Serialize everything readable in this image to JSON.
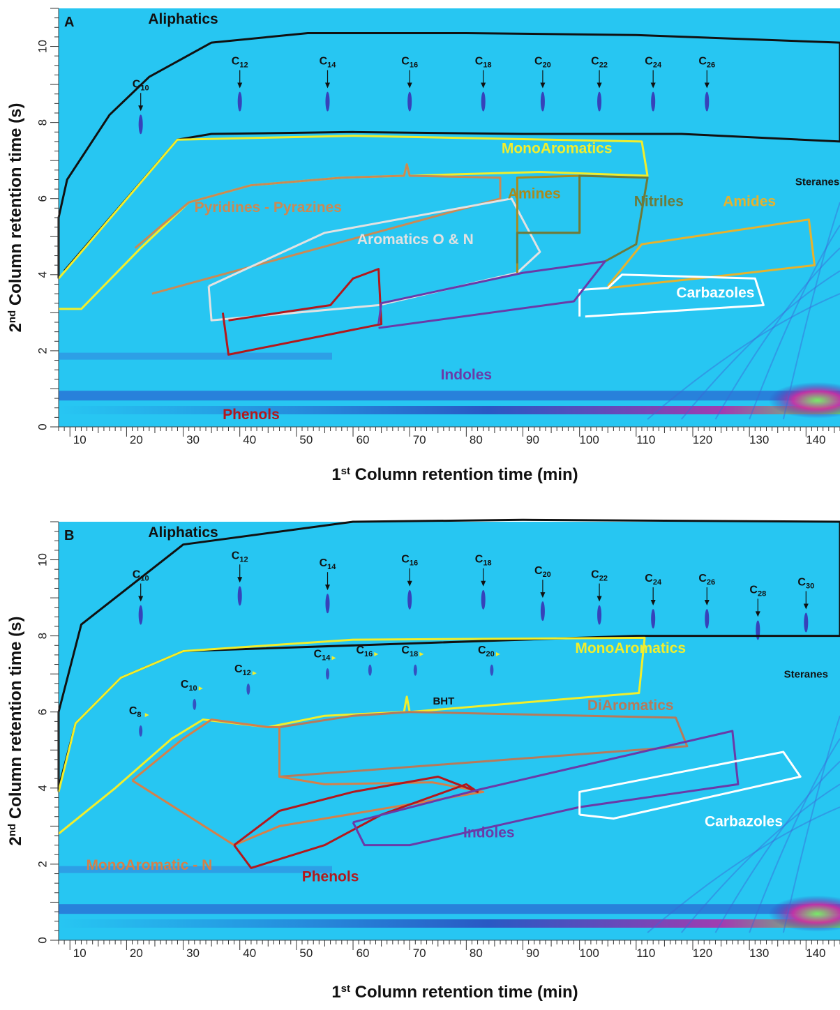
{
  "figure": {
    "colors": {
      "background": "#27c6f2",
      "aliphatics": "#111111",
      "monoaromatics": "#f2ee2b",
      "pyridines": "#c98a55",
      "aromatics_on": "#e2e2e2",
      "amines": "#a88a1e",
      "nitriles": "#6d7a3a",
      "amides": "#e7b22c",
      "carbazoles": "#ffffff",
      "phenols": "#b3181c",
      "indoles": "#6a3aa8",
      "diaromatics": "#b77a5a",
      "monoaromatic_n": "#d4804a"
    }
  },
  "chart_data": [
    {
      "type": "heatmap",
      "panel": "A",
      "xlabel": "1st Column retention time (min)",
      "ylabel": "2nd Column retention time (s)",
      "xlim": [
        8,
        146
      ],
      "ylim": [
        0,
        11
      ],
      "x_ticks": [
        10,
        20,
        30,
        40,
        50,
        60,
        70,
        80,
        90,
        100,
        110,
        120,
        130,
        140
      ],
      "y_ticks": [
        0,
        2,
        4,
        6,
        8,
        10
      ],
      "alkane_markers": [
        {
          "label": "C10",
          "x": 22.5,
          "y": 8.3
        },
        {
          "label": "C12",
          "x": 40,
          "y": 8.9
        },
        {
          "label": "C14",
          "x": 55.5,
          "y": 8.9
        },
        {
          "label": "C16",
          "x": 70,
          "y": 8.9
        },
        {
          "label": "C18",
          "x": 83,
          "y": 8.9
        },
        {
          "label": "C20",
          "x": 93.5,
          "y": 8.9
        },
        {
          "label": "C22",
          "x": 103.5,
          "y": 8.9
        },
        {
          "label": "C24",
          "x": 113,
          "y": 8.9
        },
        {
          "label": "C26",
          "x": 122.5,
          "y": 8.9
        }
      ],
      "regions": [
        {
          "name": "Aliphatics",
          "color_key": "aliphatics",
          "label_x": 30,
          "label_y": 10.6,
          "points": [
            [
              8,
              3.9
            ],
            [
              8,
              5.5
            ],
            [
              9.5,
              6.5
            ],
            [
              17,
              8.2
            ],
            [
              24,
              9.2
            ],
            [
              35,
              10.1
            ],
            [
              52,
              10.35
            ],
            [
              80,
              10.35
            ],
            [
              110,
              10.3
            ],
            [
              146,
              10.1
            ],
            [
              146,
              7.5
            ],
            [
              118,
              7.7
            ],
            [
              90,
              7.7
            ],
            [
              60,
              7.75
            ],
            [
              35,
              7.7
            ],
            [
              29,
              7.55
            ],
            [
              9,
              4.1
            ]
          ]
        },
        {
          "name": "MonoAromatics",
          "color_key": "monoaromatics",
          "label_x": 96,
          "label_y": 7.2,
          "points": [
            [
              8,
              3.9
            ],
            [
              29,
              7.55
            ],
            [
              60,
              7.65
            ],
            [
              111,
              7.5
            ],
            [
              112,
              6.6
            ],
            [
              93,
              6.7
            ],
            [
              81,
              6.65
            ],
            [
              70,
              6.6
            ],
            [
              69.5,
              6.9
            ],
            [
              69,
              6.6
            ],
            [
              58,
              6.55
            ],
            [
              42,
              6.35
            ],
            [
              31,
              5.9
            ],
            [
              22.5,
              4.7
            ],
            [
              12,
              3.1
            ],
            [
              8,
              3.1
            ]
          ]
        },
        {
          "name": "Pyridines - Pyrazines",
          "color_key": "pyridines",
          "label_x": 45,
          "label_y": 5.65,
          "points": [
            [
              21.5,
              4.7
            ],
            [
              31,
              5.9
            ],
            [
              42,
              6.35
            ],
            [
              58,
              6.55
            ],
            [
              69,
              6.6
            ],
            [
              69.5,
              6.9
            ],
            [
              70,
              6.6
            ],
            [
              86,
              6.55
            ],
            [
              86,
              6.0
            ],
            [
              24.5,
              3.5
            ]
          ]
        },
        {
          "name": "Aromatics O & N",
          "color_key": "aromatics_on",
          "label_x": 71,
          "label_y": 4.8,
          "points": [
            [
              34.5,
              3.7
            ],
            [
              35,
              2.8
            ],
            [
              64.5,
              3.2
            ],
            [
              89,
              4.05
            ],
            [
              93,
              4.6
            ],
            [
              88,
              6.0
            ],
            [
              55,
              5.1
            ],
            [
              34.5,
              3.7
            ]
          ]
        },
        {
          "name": "Amines",
          "color_key": "amines",
          "label_x": 92,
          "label_y": 6.0,
          "points": [
            [
              89,
              4.05
            ],
            [
              89,
              6.55
            ],
            [
              100,
              6.6
            ],
            [
              100,
              5.1
            ],
            [
              90,
              5.1
            ]
          ]
        },
        {
          "name": "Nitriles",
          "color_key": "nitriles",
          "label_x": 114,
          "label_y": 5.8,
          "points": [
            [
              89,
              4.3
            ],
            [
              89,
              5.1
            ],
            [
              100,
              5.1
            ],
            [
              100,
              6.6
            ],
            [
              112,
              6.55
            ],
            [
              110,
              4.8
            ],
            [
              104.5,
              4.35
            ]
          ]
        },
        {
          "name": "Amides",
          "color_key": "amides",
          "label_x": 130,
          "label_y": 5.8,
          "points": [
            [
              105,
              3.7
            ],
            [
              111,
              4.8
            ],
            [
              140.5,
              5.45
            ],
            [
              141.5,
              4.25
            ],
            [
              127,
              4.0
            ],
            [
              105,
              3.65
            ]
          ]
        },
        {
          "name": "Carbazoles",
          "color_key": "carbazoles",
          "label_x": 124,
          "label_y": 3.4,
          "points": [
            [
              100,
              2.9
            ],
            [
              100,
              3.6
            ],
            [
              105,
              3.65
            ],
            [
              107.5,
              4.0
            ],
            [
              131,
              3.9
            ],
            [
              132.5,
              3.2
            ],
            [
              101,
              2.9
            ]
          ]
        },
        {
          "name": "Phenols",
          "color_key": "phenols",
          "label_x": 42,
          "label_y": 0.2,
          "points": [
            [
              37,
              3.0
            ],
            [
              38,
              1.9
            ],
            [
              65,
              2.7
            ],
            [
              64.5,
              4.15
            ],
            [
              60,
              3.9
            ],
            [
              56,
              3.2
            ],
            [
              47,
              3.0
            ],
            [
              38,
              2.8
            ]
          ]
        },
        {
          "name": "Indoles",
          "color_key": "indoles",
          "label_x": 80,
          "label_y": 1.25,
          "points": [
            [
              64.5,
              2.7
            ],
            [
              65,
              3.25
            ],
            [
              90,
              4.05
            ],
            [
              104.5,
              4.35
            ],
            [
              99,
              3.3
            ],
            [
              64.5,
              2.6
            ]
          ]
        }
      ],
      "annotations": [
        {
          "text": "Steranes",
          "x": 142,
          "y": 6.35
        }
      ]
    },
    {
      "type": "heatmap",
      "panel": "B",
      "xlabel": "1st Column retention time (min)",
      "ylabel": "2nd Column retention time (s)",
      "xlim": [
        8,
        146
      ],
      "ylim": [
        0,
        11
      ],
      "x_ticks": [
        10,
        20,
        30,
        40,
        50,
        60,
        70,
        80,
        90,
        100,
        110,
        120,
        130,
        140
      ],
      "y_ticks": [
        0,
        2,
        4,
        6,
        8,
        10
      ],
      "alkane_markers": [
        {
          "label": "C10",
          "x": 22.5,
          "y": 8.9
        },
        {
          "label": "C12",
          "x": 40,
          "y": 9.4
        },
        {
          "label": "C14",
          "x": 55.5,
          "y": 9.2
        },
        {
          "label": "C16",
          "x": 70,
          "y": 9.3
        },
        {
          "label": "C18",
          "x": 83,
          "y": 9.3
        },
        {
          "label": "C20",
          "x": 93.5,
          "y": 9.0
        },
        {
          "label": "C22",
          "x": 103.5,
          "y": 8.9
        },
        {
          "label": "C24",
          "x": 113,
          "y": 8.8
        },
        {
          "label": "C26",
          "x": 122.5,
          "y": 8.8
        },
        {
          "label": "C28",
          "x": 131.5,
          "y": 8.5
        },
        {
          "label": "C30",
          "x": 140,
          "y": 8.7
        }
      ],
      "mono_markers": [
        {
          "label": "C8",
          "x": 22.5,
          "y": 5.9
        },
        {
          "label": "C10",
          "x": 32,
          "y": 6.6
        },
        {
          "label": "C12",
          "x": 41.5,
          "y": 7.0
        },
        {
          "label": "C14",
          "x": 55.5,
          "y": 7.4
        },
        {
          "label": "C16",
          "x": 63,
          "y": 7.5
        },
        {
          "label": "C18",
          "x": 71,
          "y": 7.5
        },
        {
          "label": "C20",
          "x": 84.5,
          "y": 7.5
        }
      ],
      "regions": [
        {
          "name": "Aliphatics",
          "color_key": "aliphatics",
          "label_x": 30,
          "label_y": 10.6,
          "points": [
            [
              8,
              3.9
            ],
            [
              8,
              6.0
            ],
            [
              12,
              8.3
            ],
            [
              30,
              10.4
            ],
            [
              60,
              11.0
            ],
            [
              90,
              11.05
            ],
            [
              146,
              11.0
            ],
            [
              146,
              8.0
            ],
            [
              110,
              8.0
            ],
            [
              30,
              7.6
            ],
            [
              19,
              6.9
            ],
            [
              11,
              5.7
            ],
            [
              8,
              4.0
            ]
          ]
        },
        {
          "name": "MonoAromatics",
          "color_key": "monoaromatics",
          "label_x": 109,
          "label_y": 7.55,
          "points": [
            [
              8,
              3.9
            ],
            [
              11,
              5.7
            ],
            [
              19,
              6.9
            ],
            [
              30,
              7.6
            ],
            [
              60,
              7.9
            ],
            [
              111.5,
              7.95
            ],
            [
              110.5,
              6.5
            ],
            [
              70,
              6.0
            ],
            [
              69.5,
              6.4
            ],
            [
              69,
              6.0
            ],
            [
              55,
              5.9
            ],
            [
              45,
              5.6
            ],
            [
              33.5,
              5.8
            ],
            [
              28,
              5.3
            ],
            [
              18,
              4.0
            ],
            [
              8,
              2.8
            ]
          ]
        },
        {
          "name": "DiAromatics",
          "color_key": "diaromatics",
          "label_x": 109,
          "label_y": 6.05,
          "points": [
            [
              47,
              5.6
            ],
            [
              47,
              4.3
            ],
            [
              119,
              5.1
            ],
            [
              117,
              5.85
            ],
            [
              70,
              6.0
            ],
            [
              60,
              5.9
            ],
            [
              47,
              5.6
            ]
          ]
        },
        {
          "name": "MonoAromatic - N",
          "color_key": "monoaromatic_n",
          "label_x": 24,
          "label_y": 1.85,
          "points": [
            [
              21,
              4.2
            ],
            [
              30,
              5.3
            ],
            [
              35,
              5.8
            ],
            [
              45,
              5.6
            ],
            [
              47,
              5.6
            ],
            [
              47,
              4.3
            ],
            [
              55,
              4.1
            ],
            [
              74,
              4.15
            ],
            [
              83,
              3.9
            ],
            [
              47,
              3.0
            ],
            [
              39,
              2.5
            ],
            [
              21,
              4.2
            ]
          ]
        },
        {
          "name": "Phenols",
          "color_key": "phenols",
          "label_x": 56,
          "label_y": 1.55,
          "points": [
            [
              39,
              2.5
            ],
            [
              42,
              1.9
            ],
            [
              55,
              2.5
            ],
            [
              65,
              3.3
            ],
            [
              80,
              4.1
            ],
            [
              82,
              3.9
            ],
            [
              75,
              4.3
            ],
            [
              60,
              3.9
            ],
            [
              47,
              3.4
            ],
            [
              39,
              2.5
            ]
          ]
        },
        {
          "name": "Indoles",
          "color_key": "indoles",
          "label_x": 84,
          "label_y": 2.7,
          "points": [
            [
              60,
              3.1
            ],
            [
              62,
              2.5
            ],
            [
              70,
              2.5
            ],
            [
              100,
              3.5
            ],
            [
              128,
              4.1
            ],
            [
              127,
              5.5
            ],
            [
              82,
              3.95
            ],
            [
              60,
              3.1
            ]
          ]
        },
        {
          "name": "Carbazoles",
          "color_key": "carbazoles",
          "label_x": 129,
          "label_y": 3.0,
          "points": [
            [
              100,
              3.3
            ],
            [
              100,
              3.9
            ],
            [
              136,
              4.95
            ],
            [
              139,
              4.3
            ],
            [
              106,
              3.2
            ],
            [
              100,
              3.3
            ]
          ]
        }
      ],
      "annotations": [
        {
          "text": "BHT",
          "x": 76,
          "y": 6.2
        },
        {
          "text": "Steranes",
          "x": 140,
          "y": 6.9
        }
      ]
    }
  ]
}
